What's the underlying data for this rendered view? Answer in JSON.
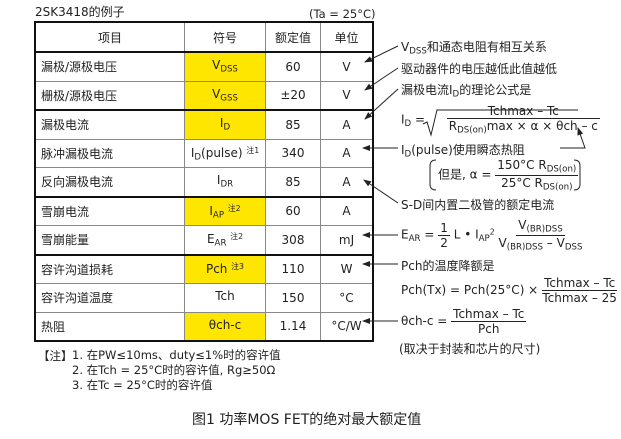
{
  "title": "2SK3418的例子",
  "condition": "(Ta = 25°C)",
  "headers": [
    "项目",
    "符号",
    "额定值",
    "单位"
  ],
  "rows": [
    {
      "name": "漏极/源极电压",
      "sym": "V",
      "sub": "DSS",
      "note": "",
      "value": "60",
      "unit": "V",
      "highlight": true
    },
    {
      "name": "栅极/源极电压",
      "sym": "V",
      "sub": "GSS",
      "note": "",
      "value": "±20",
      "unit": "V",
      "highlight": true
    },
    {
      "name": "漏极电流",
      "sym": "I",
      "sub": "D",
      "note": "",
      "value": "85",
      "unit": "A",
      "highlight": true
    },
    {
      "name": "脉冲漏极电流",
      "sym": "I",
      "sub": "D",
      "suffix": "(pulse)",
      "note": "注1",
      "value": "340",
      "unit": "A",
      "highlight": false
    },
    {
      "name": "反向漏极电流",
      "sym": "I",
      "sub": "DR",
      "note": "",
      "value": "85",
      "unit": "A",
      "highlight": false
    },
    {
      "name": "雪崩电流",
      "sym": "I",
      "sub": "AP",
      "note": "注2",
      "value": "60",
      "unit": "A",
      "highlight": true
    },
    {
      "name": "雪崩能量",
      "sym": "E",
      "sub": "AR",
      "note": "注2",
      "value": "308",
      "unit": "mJ",
      "highlight": false
    },
    {
      "name": "容许沟道损耗",
      "sym": "Pch",
      "sub": "",
      "note": "注3",
      "value": "110",
      "unit": "W",
      "highlight": true
    },
    {
      "name": "容许沟道温度",
      "sym": "Tch",
      "sub": "",
      "note": "",
      "value": "150",
      "unit": "°C",
      "highlight": false
    },
    {
      "name": "热阻",
      "sym": "θch-c",
      "sub": "",
      "note": "",
      "value": "1.14",
      "unit": "°C/W",
      "highlight": true
    }
  ],
  "highlight_color": "#ffe600",
  "annotations": {
    "a1": {
      "pre": "V",
      "sub": "DSS",
      "text": "和通态电阻有相互关系"
    },
    "a2": "驱动器件的电压越低此值越低",
    "a3": {
      "pre": "漏极电流I",
      "sub": "D",
      "text": "的理论公式是"
    },
    "id_formula": {
      "lhs": "I",
      "lhs_sub": "D",
      "eq": "=",
      "num": "Tchmax – Tc",
      "den_pre": "R",
      "den_sub": "DS(on)",
      "den_post": "max × α × θch – c"
    },
    "a4": {
      "pre": "I",
      "sub": "D",
      "text": "(pulse)使用瞬态热阻"
    },
    "alpha": {
      "pre": "但是, α =",
      "num": "150°C R",
      "num_sub": "DS(on)",
      "den": "25°C R",
      "den_sub": "DS(on)"
    },
    "a5": "S-D间内置二极管的额定电流",
    "ear": {
      "lhs": "E",
      "lhs_sub": "AR",
      "eq": "=",
      "half_num": "1",
      "half_den": "2",
      "mid": "L • I",
      "mid_sub": "AP",
      "mid_sup": "2",
      "num": "V",
      "num_sub": "(BR)DSS",
      "den": "V",
      "den_sub": "(BR)DSS",
      "den_mid": " – V",
      "den_sub2": "DSS"
    },
    "a6": "Pch的温度降额是",
    "pch": {
      "lhs": "Pch(Tx) = Pch(25°C) ×",
      "num": "Tchmax – Tc",
      "den": "Tchmax – 25"
    },
    "theta": {
      "lhs": "θch-c =",
      "num": "Tchmax – Tc",
      "den": "Pch"
    },
    "a7": "(取决于封装和芯片的尺寸)"
  },
  "notes": {
    "label": "【注】",
    "items": [
      "1. 在PW≤10ms、duty≤1%时的容许值",
      "2. 在Tch = 25°C时的容许值, Rg≥50Ω",
      "3. 在Tc = 25°C时的容许值"
    ]
  },
  "caption": "图1  功率MOS FET的绝对最大额定值"
}
